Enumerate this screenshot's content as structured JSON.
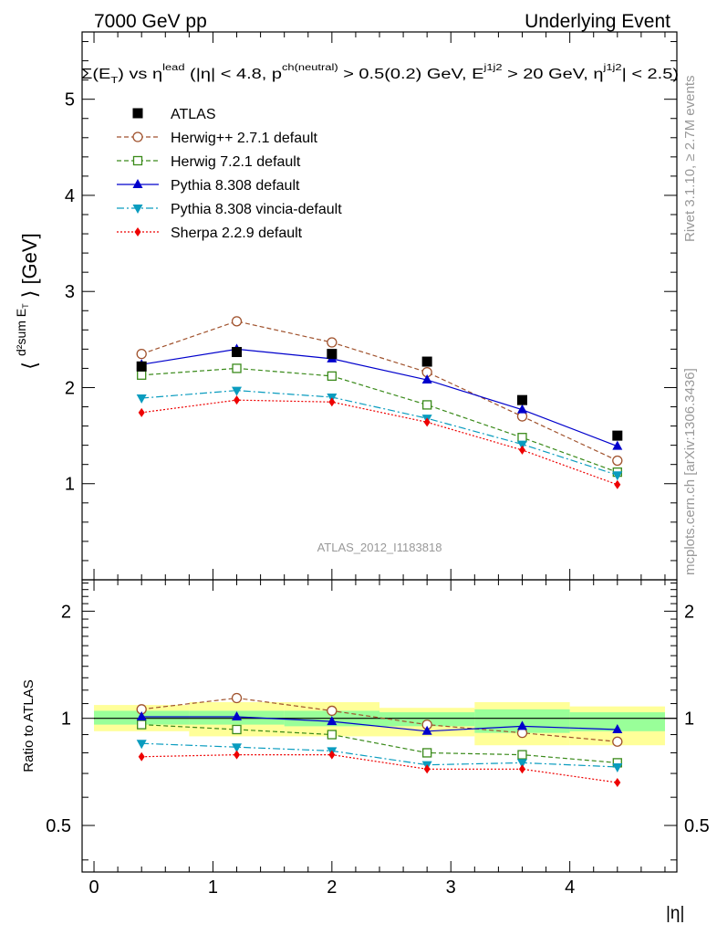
{
  "header": {
    "left": "7000 GeV pp",
    "right": "Underlying Event"
  },
  "subtitle": "Σ(E_T) vs η^lead (|η| < 4.8, p_T^ch(neutral) > 0.5(0.2) GeV, E_T^j1j2 > 20 GeV, η^j1j2| < 2.5)",
  "ylabel_main": "⟨ d²sum E_T / dη dφ ⟩ [GeV]",
  "ylabel_ratio": "Ratio to ATLAS",
  "xlabel": "|η|",
  "watermark": "ATLAS_2012_I1183818",
  "side_text": {
    "rivet": "Rivet 3.1.10, ≥ 2.7M events",
    "mcplots": "mcplots.cern.ch [arXiv:1306.3436]"
  },
  "chart_data": [
    {
      "type": "line",
      "panel": "main",
      "x": [
        0.4,
        1.2,
        2.0,
        2.8,
        3.6,
        4.4
      ],
      "xlim": [
        -0.1,
        4.9
      ],
      "ylim": [
        0,
        5.7
      ],
      "yticks": [
        0,
        1,
        2,
        3,
        4,
        5
      ],
      "xticks": [
        0,
        1,
        2,
        3,
        4
      ],
      "legend_position": "top-left",
      "series": [
        {
          "name": "ATLAS",
          "values": [
            2.22,
            2.37,
            2.35,
            2.27,
            1.87,
            1.5
          ],
          "color": "#000000",
          "marker": "square",
          "style": "none"
        },
        {
          "name": "Herwig++ 2.7.1 default",
          "values": [
            2.35,
            2.69,
            2.47,
            2.16,
            1.7,
            1.24
          ],
          "color": "#a0522d",
          "marker": "circle-open",
          "style": "dashed"
        },
        {
          "name": "Herwig 7.2.1 default",
          "values": [
            2.13,
            2.2,
            2.12,
            1.82,
            1.48,
            1.12
          ],
          "color": "#3a8a1a",
          "marker": "square-open",
          "style": "dashed"
        },
        {
          "name": "Pythia 8.308 default",
          "values": [
            2.24,
            2.4,
            2.3,
            2.08,
            1.77,
            1.39
          ],
          "color": "#0000cc",
          "marker": "triangle-up",
          "style": "solid"
        },
        {
          "name": "Pythia 8.308 vincia-default",
          "values": [
            1.89,
            1.97,
            1.9,
            1.68,
            1.41,
            1.09
          ],
          "color": "#0a9cbf",
          "marker": "triangle-down",
          "style": "dashdot"
        },
        {
          "name": "Sherpa 2.2.9 default",
          "values": [
            1.74,
            1.87,
            1.85,
            1.64,
            1.35,
            0.99
          ],
          "color": "#ee0000",
          "marker": "diamond",
          "style": "dotted"
        }
      ]
    },
    {
      "type": "line",
      "panel": "ratio",
      "x": [
        0.4,
        1.2,
        2.0,
        2.8,
        3.6,
        4.4
      ],
      "xlim": [
        -0.1,
        4.9
      ],
      "ylim": [
        0.37,
        2.45
      ],
      "yticks": [
        0.5,
        1,
        2
      ],
      "ytick_labels": [
        "0.5",
        "1",
        "2"
      ],
      "bands": {
        "x_edges": [
          0.0,
          0.8,
          1.6,
          2.4,
          3.2,
          4.0,
          4.8
        ],
        "yellow": [
          [
            0.92,
            1.09
          ],
          [
            0.89,
            1.11
          ],
          [
            0.89,
            1.11
          ],
          [
            0.89,
            1.07
          ],
          [
            0.84,
            1.11
          ],
          [
            0.84,
            1.08
          ]
        ],
        "green": [
          [
            0.96,
            1.05
          ],
          [
            0.96,
            1.05
          ],
          [
            0.95,
            1.05
          ],
          [
            0.95,
            1.04
          ],
          [
            0.91,
            1.06
          ],
          [
            0.92,
            1.04
          ]
        ]
      },
      "series": [
        {
          "name": "Herwig++ 2.7.1 default",
          "values": [
            1.06,
            1.14,
            1.05,
            0.96,
            0.91,
            0.86
          ]
        },
        {
          "name": "Herwig 7.2.1 default",
          "values": [
            0.96,
            0.93,
            0.9,
            0.8,
            0.79,
            0.75
          ]
        },
        {
          "name": "Pythia 8.308 default",
          "values": [
            1.01,
            1.01,
            0.98,
            0.92,
            0.95,
            0.93
          ]
        },
        {
          "name": "Pythia 8.308 vincia-default",
          "values": [
            0.85,
            0.83,
            0.81,
            0.74,
            0.75,
            0.73
          ]
        },
        {
          "name": "Sherpa 2.2.9 default",
          "values": [
            0.78,
            0.79,
            0.79,
            0.72,
            0.72,
            0.66
          ]
        }
      ]
    }
  ]
}
